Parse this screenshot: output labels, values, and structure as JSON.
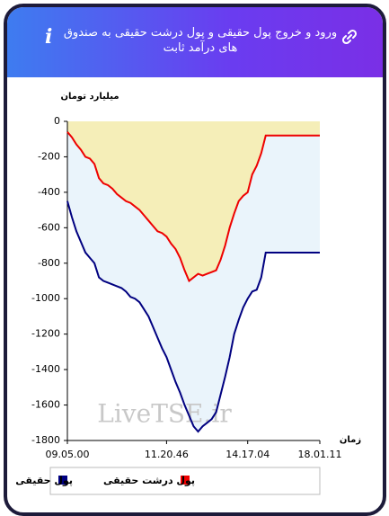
{
  "header": {
    "title": "ورود و خروج پول حقیقی و پول درشت حقیقی به صندوق های درآمد ثابت"
  },
  "chart_data": {
    "type": "line",
    "y_label": "میلیارد تومان",
    "x_label": "زمان",
    "watermark": "LiveTSE.ir",
    "x": [
      0,
      1,
      2,
      3,
      4,
      5,
      6,
      7,
      8,
      9,
      10,
      11,
      12,
      13,
      14,
      15,
      16,
      17,
      18,
      19,
      20,
      21,
      22,
      23,
      24,
      25,
      26,
      27,
      28,
      29,
      30,
      31,
      32,
      33,
      34,
      35,
      36,
      37,
      38,
      39,
      40,
      41,
      42,
      43,
      44,
      45,
      46,
      47,
      48,
      49,
      50,
      51,
      52,
      53,
      54,
      55,
      56
    ],
    "xlim": [
      0,
      56
    ],
    "xticks": [
      {
        "value": 0,
        "label": "09.05.00"
      },
      {
        "value": 22,
        "label": "11.20.46"
      },
      {
        "value": 40,
        "label": "14.17.04"
      },
      {
        "value": 56,
        "label": "18.01.11"
      }
    ],
    "ylim": [
      -1800,
      0
    ],
    "yticks": [
      0,
      -200,
      -400,
      -600,
      -800,
      -1000,
      -1200,
      -1400,
      -1600,
      -1800
    ],
    "grid": false,
    "series": [
      {
        "name": "پول حقیقی",
        "color": "#000080",
        "values": [
          -450,
          -540,
          -620,
          -680,
          -740,
          -770,
          -800,
          -880,
          -900,
          -910,
          -920,
          -930,
          -940,
          -960,
          -990,
          -1000,
          -1020,
          -1060,
          -1100,
          -1160,
          -1220,
          -1280,
          -1330,
          -1400,
          -1470,
          -1530,
          -1600,
          -1660,
          -1720,
          -1750,
          -1720,
          -1700,
          -1680,
          -1640,
          -1540,
          -1440,
          -1330,
          -1200,
          -1120,
          -1050,
          -1000,
          -960,
          -950,
          -880,
          -740,
          -740,
          -740,
          -740,
          -740,
          -740,
          -740,
          -740,
          -740,
          -740,
          -740,
          -740,
          -740
        ]
      },
      {
        "name": "پول درشت حقیقی",
        "color": "#ee0000",
        "values": [
          -60,
          -90,
          -130,
          -160,
          -200,
          -210,
          -240,
          -320,
          -350,
          -360,
          -380,
          -410,
          -430,
          -450,
          -460,
          -480,
          -500,
          -530,
          -560,
          -590,
          -620,
          -630,
          -650,
          -690,
          -720,
          -770,
          -840,
          -900,
          -880,
          -860,
          -870,
          -860,
          -850,
          -840,
          -780,
          -700,
          -600,
          -520,
          -450,
          -420,
          -400,
          -300,
          -250,
          -180,
          -80,
          -80,
          -80,
          -80,
          -80,
          -80,
          -80,
          -80,
          -80,
          -80,
          -80,
          -80,
          -80
        ]
      }
    ]
  }
}
